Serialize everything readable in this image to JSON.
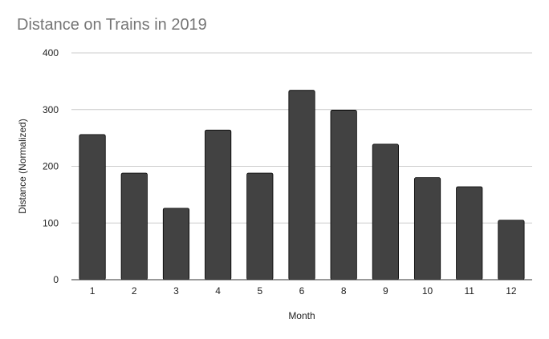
{
  "chart_data": {
    "type": "bar",
    "title": "Distance on Trains in 2019",
    "xlabel": "Month",
    "ylabel": "Distance (Normalized)",
    "categories": [
      "1",
      "2",
      "3",
      "4",
      "5",
      "6",
      "8",
      "9",
      "10",
      "11",
      "12"
    ],
    "values": [
      256,
      188,
      126,
      264,
      188,
      334,
      299,
      239,
      180,
      164,
      105
    ],
    "ylim": [
      0,
      400
    ],
    "yticks": [
      0,
      100,
      200,
      300,
      400
    ],
    "grid": true,
    "legend": "none",
    "colors": {
      "bar": "#424242",
      "bar_edge": "#000000",
      "grid": "#cccccc",
      "axis": "#333333",
      "title": "#757575"
    }
  }
}
